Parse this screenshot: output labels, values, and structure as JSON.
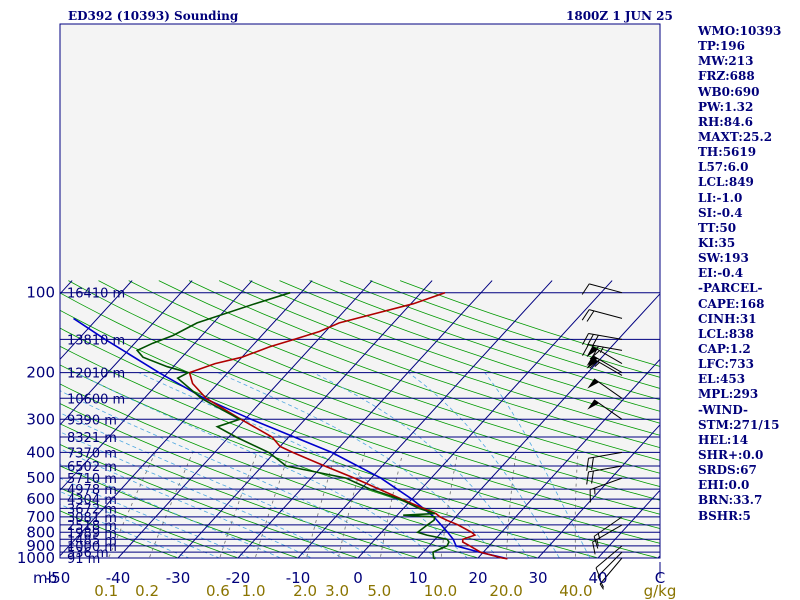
{
  "header": {
    "station_title": "ED392 (10393) Sounding",
    "valid_time": "1800Z  1 JUN 25"
  },
  "stats": [
    "WMO:10393",
    "TP:196",
    "MW:213",
    "FRZ:688",
    "WB0:690",
    "PW:1.32",
    "RH:84.6",
    "MAXT:25.2",
    "TH:5619",
    "L57:6.0",
    "LCL:849",
    "LI:-1.0",
    "SI:-0.4",
    "TT:50",
    "KI:35",
    "SW:193",
    "EI:-0.4",
    "-PARCEL-",
    "CAPE:168",
    "CINH:31",
    "LCL:838",
    "CAP:1.2",
    "LFC:733",
    "EL:453",
    "MPL:293",
    "-WIND-",
    "STM:271/15",
    "HEL:14",
    "SHR+:0.0",
    "SRDS:67",
    "EHI:0.0",
    "BRN:33.7",
    "BSHR:5"
  ],
  "colors": {
    "background": "#ffffff",
    "axis_text": "#00007a",
    "isobar": "#000080",
    "isotherm": "#000080",
    "dry_adiabat": "#009900",
    "moist_adiabat": "#4fa8e0",
    "mixing_ratio": "#707070",
    "temperature": "#b00000",
    "dewpoint": "#005000",
    "parcel": "#0000cc",
    "mixing_label": "#8a7400",
    "wind_barb": "#000000"
  },
  "chart_data": {
    "type": "skew-t log-p sounding",
    "pressure_unit_label": "mb",
    "temperature_unit": "C",
    "mixing_ratio_unit": "g/kg",
    "pressure_ticks": [
      100,
      200,
      300,
      400,
      500,
      600,
      700,
      800,
      900,
      1000
    ],
    "temperature_ticks": [
      "-50",
      "-40",
      "-30",
      "-20",
      "-10",
      "0",
      "10",
      "20",
      "30",
      "40",
      "C"
    ],
    "mixing_ratio_ticks": [
      "0.1",
      "0.2",
      "0.6",
      "1.0",
      "2.0",
      "3.0",
      "5.0",
      "10.0",
      "20.0",
      "40.0",
      "g/kg"
    ],
    "mixing_ratio_values": [
      0.1,
      0.2,
      0.6,
      1.0,
      2.0,
      3.0,
      5.0,
      10.0,
      20.0,
      40.0
    ],
    "height_labels": [
      {
        "p": 100,
        "text": "16410 m"
      },
      {
        "p": 150,
        "text": "13810 m"
      },
      {
        "p": 200,
        "text": "12010 m"
      },
      {
        "p": 250,
        "text": "10600 m"
      },
      {
        "p": 300,
        "text": "9390 m"
      },
      {
        "p": 350,
        "text": "8321 m"
      },
      {
        "p": 400,
        "text": "7370 m"
      },
      {
        "p": 450,
        "text": "6502 m"
      },
      {
        "p": 500,
        "text": "5710 m"
      },
      {
        "p": 550,
        "text": "4978 m"
      },
      {
        "p": 600,
        "text": "4304 m"
      },
      {
        "p": 650,
        "text": "3672 m"
      },
      {
        "p": 700,
        "text": "3081 m"
      },
      {
        "p": 750,
        "text": "2518 m"
      },
      {
        "p": 800,
        "text": "1989 m"
      },
      {
        "p": 850,
        "text": "1485 m"
      },
      {
        "p": 900,
        "text": "1000 m"
      },
      {
        "p": 950,
        "text": "536 m"
      },
      {
        "p": 1000,
        "text": "91 m"
      }
    ],
    "p_range": [
      100,
      1000
    ],
    "t_range_at_1000mb": [
      -50,
      50
    ],
    "temperature_profile": [
      {
        "p": 1006,
        "t": 25.0
      },
      {
        "p": 1000,
        "t": 24.0
      },
      {
        "p": 950,
        "t": 19.5
      },
      {
        "p": 900,
        "t": 16.8
      },
      {
        "p": 870,
        "t": 15.0
      },
      {
        "p": 850,
        "t": 14.6
      },
      {
        "p": 820,
        "t": 16.0
      },
      {
        "p": 800,
        "t": 15.0
      },
      {
        "p": 750,
        "t": 11.6
      },
      {
        "p": 720,
        "t": 9.0
      },
      {
        "p": 700,
        "t": 7.4
      },
      {
        "p": 680,
        "t": 6.2
      },
      {
        "p": 650,
        "t": 3.3
      },
      {
        "p": 600,
        "t": -1.7
      },
      {
        "p": 550,
        "t": -7.0
      },
      {
        "p": 500,
        "t": -12.8
      },
      {
        "p": 450,
        "t": -19.6
      },
      {
        "p": 400,
        "t": -27.0
      },
      {
        "p": 380,
        "t": -30.0
      },
      {
        "p": 350,
        "t": -32.8
      },
      {
        "p": 300,
        "t": -40.7
      },
      {
        "p": 250,
        "t": -49.7
      },
      {
        "p": 220,
        "t": -54.2
      },
      {
        "p": 200,
        "t": -56.4
      },
      {
        "p": 185,
        "t": -53.5
      },
      {
        "p": 175,
        "t": -50.0
      },
      {
        "p": 170,
        "t": -49.0
      },
      {
        "p": 165,
        "t": -48.0
      },
      {
        "p": 160,
        "t": -47.0
      },
      {
        "p": 150,
        "t": -44.0
      },
      {
        "p": 140,
        "t": -41.0
      },
      {
        "p": 130,
        "t": -39.0
      },
      {
        "p": 110,
        "t": -29.6
      },
      {
        "p": 100,
        "t": -26.0
      }
    ],
    "dewpoint_profile": [
      {
        "p": 1006,
        "td": 13.0
      },
      {
        "p": 1000,
        "td": 12.6
      },
      {
        "p": 950,
        "td": 11.6
      },
      {
        "p": 900,
        "td": 13.0
      },
      {
        "p": 870,
        "td": 12.7
      },
      {
        "p": 850,
        "td": 12.0
      },
      {
        "p": 820,
        "td": 8.0
      },
      {
        "p": 800,
        "td": 6.0
      },
      {
        "p": 750,
        "td": 6.5
      },
      {
        "p": 720,
        "td": 6.9
      },
      {
        "p": 700,
        "td": 6.5
      },
      {
        "p": 690,
        "td": 1.0
      },
      {
        "p": 680,
        "td": 6.0
      },
      {
        "p": 650,
        "td": 2.6
      },
      {
        "p": 600,
        "td": -2.0
      },
      {
        "p": 550,
        "td": -8.5
      },
      {
        "p": 500,
        "td": -14.2
      },
      {
        "p": 450,
        "td": -26.0
      },
      {
        "p": 400,
        "td": -31.0
      },
      {
        "p": 350,
        "td": -38.8
      },
      {
        "p": 320,
        "td": -43.5
      },
      {
        "p": 300,
        "td": -40.9
      },
      {
        "p": 250,
        "td": -50.5
      },
      {
        "p": 210,
        "td": -57.5
      },
      {
        "p": 200,
        "td": -56.6
      },
      {
        "p": 190,
        "td": -61.0
      },
      {
        "p": 175,
        "td": -66.5
      },
      {
        "p": 165,
        "td": -68.5
      },
      {
        "p": 155,
        "td": -67.0
      },
      {
        "p": 145,
        "td": -64.8
      },
      {
        "p": 130,
        "td": -62.7
      },
      {
        "p": 110,
        "td": -56.0
      },
      {
        "p": 100,
        "td": -51.8
      }
    ],
    "parcel_profile": [
      {
        "p": 1006,
        "t": 25.0
      },
      {
        "p": 950,
        "t": 19.3
      },
      {
        "p": 900,
        "t": 14.5
      },
      {
        "p": 850,
        "t": 13.0
      },
      {
        "p": 800,
        "t": 11.0
      },
      {
        "p": 700,
        "t": 6.4
      },
      {
        "p": 600,
        "t": 0.0
      },
      {
        "p": 500,
        "t": -8.4
      },
      {
        "p": 400,
        "t": -20.5
      },
      {
        "p": 300,
        "t": -39.0
      },
      {
        "p": 250,
        "t": -50.0
      },
      {
        "p": 200,
        "t": -61.5
      },
      {
        "p": 150,
        "t": -75.5
      },
      {
        "p": 125,
        "t": -84.0
      }
    ],
    "wind_barbs": [
      {
        "p": 100,
        "dir": 285,
        "kt": 10
      },
      {
        "p": 125,
        "dir": 285,
        "kt": 20
      },
      {
        "p": 150,
        "dir": 280,
        "kt": 30
      },
      {
        "p": 165,
        "dir": 280,
        "kt": 35
      },
      {
        "p": 185,
        "dir": 300,
        "kt": 60
      },
      {
        "p": 200,
        "dir": 300,
        "kt": 60
      },
      {
        "p": 205,
        "dir": 300,
        "kt": 55
      },
      {
        "p": 250,
        "dir": 305,
        "kt": 50
      },
      {
        "p": 300,
        "dir": 305,
        "kt": 50
      },
      {
        "p": 400,
        "dir": 260,
        "kt": 20
      },
      {
        "p": 450,
        "dir": 260,
        "kt": 20
      },
      {
        "p": 500,
        "dir": 250,
        "kt": 15
      },
      {
        "p": 700,
        "dir": 235,
        "kt": 15
      },
      {
        "p": 750,
        "dir": 240,
        "kt": 15
      },
      {
        "p": 900,
        "dir": 230,
        "kt": 10
      },
      {
        "p": 950,
        "dir": 225,
        "kt": 10
      },
      {
        "p": 1000,
        "dir": 220,
        "kt": 5
      }
    ]
  }
}
